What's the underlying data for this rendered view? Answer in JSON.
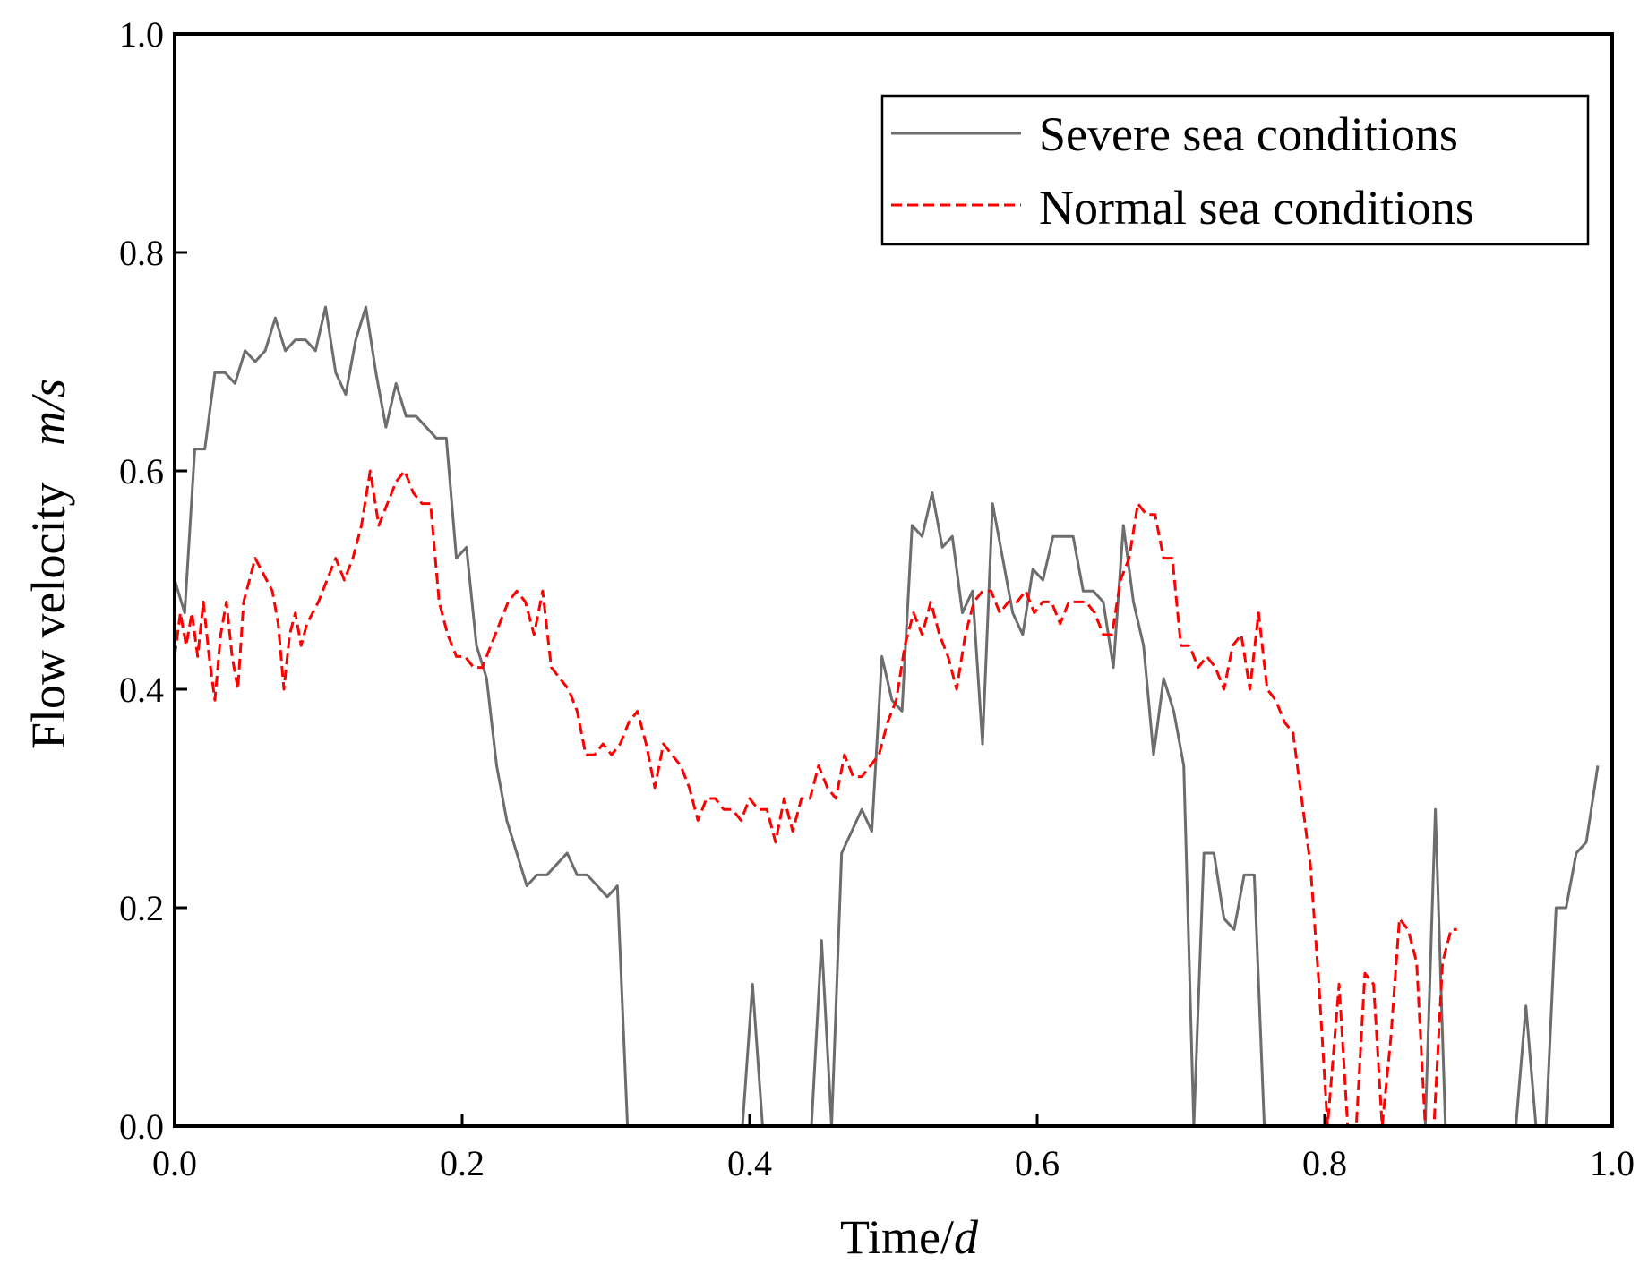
{
  "chart_data": {
    "type": "line",
    "title": "",
    "xlabel": "Time/",
    "xlabel_unit": "d",
    "ylabel": "Flow velocity   ",
    "ylabel_unit": "m/s",
    "xlim": [
      0.0,
      1.0
    ],
    "ylim": [
      0.0,
      1.0
    ],
    "x_ticks": [
      0.0,
      0.2,
      0.4,
      0.6,
      0.8,
      1.0
    ],
    "y_ticks": [
      0.0,
      0.2,
      0.4,
      0.6,
      0.8,
      1.0
    ],
    "x_tick_labels": [
      "0.0",
      "0.2",
      "0.4",
      "0.6",
      "0.8",
      "1.0"
    ],
    "y_tick_labels": [
      "0.0",
      "0.2",
      "0.4",
      "0.6",
      "0.8",
      "1.0"
    ],
    "legend_position": "top-right",
    "series": [
      {
        "name": "Severe sea conditions",
        "color": "#6d6d6d",
        "style": "solid",
        "points": [
          [
            0.0,
            0.5
          ],
          [
            0.007,
            0.47
          ],
          [
            0.014,
            0.62
          ],
          [
            0.021,
            0.62
          ],
          [
            0.028,
            0.69
          ],
          [
            0.035,
            0.69
          ],
          [
            0.042,
            0.68
          ],
          [
            0.049,
            0.71
          ],
          [
            0.056,
            0.7
          ],
          [
            0.063,
            0.71
          ],
          [
            0.07,
            0.74
          ],
          [
            0.077,
            0.71
          ],
          [
            0.084,
            0.72
          ],
          [
            0.091,
            0.72
          ],
          [
            0.098,
            0.71
          ],
          [
            0.105,
            0.75
          ],
          [
            0.112,
            0.69
          ],
          [
            0.119,
            0.67
          ],
          [
            0.126,
            0.72
          ],
          [
            0.133,
            0.75
          ],
          [
            0.14,
            0.69
          ],
          [
            0.147,
            0.64
          ],
          [
            0.154,
            0.68
          ],
          [
            0.161,
            0.65
          ],
          [
            0.168,
            0.65
          ],
          [
            0.175,
            0.64
          ],
          [
            0.182,
            0.63
          ],
          [
            0.189,
            0.63
          ],
          [
            0.196,
            0.52
          ],
          [
            0.203,
            0.53
          ],
          [
            0.21,
            0.44
          ],
          [
            0.217,
            0.41
          ],
          [
            0.224,
            0.33
          ],
          [
            0.231,
            0.28
          ],
          [
            0.238,
            0.25
          ],
          [
            0.245,
            0.22
          ],
          [
            0.252,
            0.23
          ],
          [
            0.259,
            0.23
          ],
          [
            0.266,
            0.24
          ],
          [
            0.273,
            0.25
          ],
          [
            0.28,
            0.23
          ],
          [
            0.287,
            0.23
          ],
          [
            0.294,
            0.22
          ],
          [
            0.301,
            0.21
          ],
          [
            0.308,
            0.22
          ],
          [
            0.315,
            0.0
          ],
          [
            0.322,
            0.0
          ],
          [
            0.395,
            0.0
          ],
          [
            0.402,
            0.13
          ],
          [
            0.409,
            0.0
          ],
          [
            0.443,
            0.0
          ],
          [
            0.45,
            0.17
          ],
          [
            0.457,
            0.0
          ],
          [
            0.464,
            0.25
          ],
          [
            0.471,
            0.27
          ],
          [
            0.478,
            0.29
          ],
          [
            0.485,
            0.27
          ],
          [
            0.492,
            0.43
          ],
          [
            0.499,
            0.39
          ],
          [
            0.506,
            0.38
          ],
          [
            0.513,
            0.55
          ],
          [
            0.52,
            0.54
          ],
          [
            0.527,
            0.58
          ],
          [
            0.534,
            0.53
          ],
          [
            0.541,
            0.54
          ],
          [
            0.548,
            0.47
          ],
          [
            0.555,
            0.49
          ],
          [
            0.562,
            0.35
          ],
          [
            0.569,
            0.57
          ],
          [
            0.576,
            0.52
          ],
          [
            0.583,
            0.47
          ],
          [
            0.59,
            0.45
          ],
          [
            0.597,
            0.51
          ],
          [
            0.604,
            0.5
          ],
          [
            0.611,
            0.54
          ],
          [
            0.618,
            0.54
          ],
          [
            0.625,
            0.54
          ],
          [
            0.632,
            0.49
          ],
          [
            0.639,
            0.49
          ],
          [
            0.646,
            0.48
          ],
          [
            0.653,
            0.42
          ],
          [
            0.66,
            0.55
          ],
          [
            0.667,
            0.48
          ],
          [
            0.674,
            0.44
          ],
          [
            0.681,
            0.34
          ],
          [
            0.688,
            0.41
          ],
          [
            0.695,
            0.38
          ],
          [
            0.702,
            0.33
          ],
          [
            0.709,
            0.0
          ],
          [
            0.716,
            0.25
          ],
          [
            0.723,
            0.25
          ],
          [
            0.73,
            0.19
          ],
          [
            0.737,
            0.18
          ],
          [
            0.744,
            0.23
          ],
          [
            0.751,
            0.23
          ],
          [
            0.758,
            0.0
          ],
          [
            0.87,
            0.0
          ],
          [
            0.877,
            0.29
          ],
          [
            0.884,
            0.0
          ],
          [
            0.933,
            0.0
          ],
          [
            0.94,
            0.11
          ],
          [
            0.947,
            0.0
          ],
          [
            0.954,
            0.0
          ],
          [
            0.961,
            0.2
          ],
          [
            0.968,
            0.2
          ],
          [
            0.975,
            0.25
          ],
          [
            0.982,
            0.26
          ],
          [
            0.99,
            0.33
          ]
        ]
      },
      {
        "name": "Normal sea conditions",
        "color": "#ff0000",
        "style": "dashed",
        "points": [
          [
            0.0,
            0.43
          ],
          [
            0.004,
            0.47
          ],
          [
            0.008,
            0.44
          ],
          [
            0.012,
            0.47
          ],
          [
            0.016,
            0.43
          ],
          [
            0.02,
            0.48
          ],
          [
            0.024,
            0.43
          ],
          [
            0.028,
            0.39
          ],
          [
            0.032,
            0.45
          ],
          [
            0.036,
            0.48
          ],
          [
            0.04,
            0.43
          ],
          [
            0.044,
            0.4
          ],
          [
            0.048,
            0.48
          ],
          [
            0.052,
            0.5
          ],
          [
            0.056,
            0.52
          ],
          [
            0.06,
            0.51
          ],
          [
            0.064,
            0.5
          ],
          [
            0.068,
            0.49
          ],
          [
            0.072,
            0.46
          ],
          [
            0.076,
            0.4
          ],
          [
            0.08,
            0.45
          ],
          [
            0.084,
            0.47
          ],
          [
            0.088,
            0.44
          ],
          [
            0.092,
            0.46
          ],
          [
            0.096,
            0.47
          ],
          [
            0.1,
            0.48
          ],
          [
            0.106,
            0.5
          ],
          [
            0.112,
            0.52
          ],
          [
            0.118,
            0.5
          ],
          [
            0.124,
            0.52
          ],
          [
            0.13,
            0.55
          ],
          [
            0.136,
            0.6
          ],
          [
            0.142,
            0.55
          ],
          [
            0.148,
            0.57
          ],
          [
            0.154,
            0.59
          ],
          [
            0.16,
            0.6
          ],
          [
            0.166,
            0.58
          ],
          [
            0.172,
            0.57
          ],
          [
            0.178,
            0.57
          ],
          [
            0.184,
            0.48
          ],
          [
            0.19,
            0.45
          ],
          [
            0.196,
            0.43
          ],
          [
            0.202,
            0.43
          ],
          [
            0.208,
            0.42
          ],
          [
            0.214,
            0.42
          ],
          [
            0.22,
            0.44
          ],
          [
            0.226,
            0.46
          ],
          [
            0.232,
            0.48
          ],
          [
            0.238,
            0.49
          ],
          [
            0.244,
            0.48
          ],
          [
            0.25,
            0.45
          ],
          [
            0.256,
            0.49
          ],
          [
            0.262,
            0.42
          ],
          [
            0.268,
            0.41
          ],
          [
            0.274,
            0.4
          ],
          [
            0.28,
            0.38
          ],
          [
            0.286,
            0.34
          ],
          [
            0.292,
            0.34
          ],
          [
            0.298,
            0.35
          ],
          [
            0.304,
            0.34
          ],
          [
            0.31,
            0.35
          ],
          [
            0.316,
            0.37
          ],
          [
            0.322,
            0.38
          ],
          [
            0.328,
            0.35
          ],
          [
            0.334,
            0.31
          ],
          [
            0.34,
            0.35
          ],
          [
            0.346,
            0.34
          ],
          [
            0.352,
            0.33
          ],
          [
            0.358,
            0.31
          ],
          [
            0.364,
            0.28
          ],
          [
            0.37,
            0.3
          ],
          [
            0.376,
            0.3
          ],
          [
            0.382,
            0.29
          ],
          [
            0.388,
            0.29
          ],
          [
            0.394,
            0.28
          ],
          [
            0.4,
            0.3
          ],
          [
            0.406,
            0.29
          ],
          [
            0.412,
            0.29
          ],
          [
            0.418,
            0.26
          ],
          [
            0.424,
            0.3
          ],
          [
            0.43,
            0.27
          ],
          [
            0.436,
            0.3
          ],
          [
            0.442,
            0.3
          ],
          [
            0.448,
            0.33
          ],
          [
            0.454,
            0.31
          ],
          [
            0.46,
            0.3
          ],
          [
            0.466,
            0.34
          ],
          [
            0.472,
            0.32
          ],
          [
            0.478,
            0.32
          ],
          [
            0.484,
            0.33
          ],
          [
            0.49,
            0.34
          ],
          [
            0.496,
            0.37
          ],
          [
            0.502,
            0.39
          ],
          [
            0.508,
            0.44
          ],
          [
            0.514,
            0.47
          ],
          [
            0.52,
            0.45
          ],
          [
            0.526,
            0.48
          ],
          [
            0.532,
            0.45
          ],
          [
            0.538,
            0.43
          ],
          [
            0.544,
            0.4
          ],
          [
            0.55,
            0.45
          ],
          [
            0.556,
            0.48
          ],
          [
            0.562,
            0.49
          ],
          [
            0.568,
            0.49
          ],
          [
            0.574,
            0.47
          ],
          [
            0.58,
            0.48
          ],
          [
            0.586,
            0.48
          ],
          [
            0.592,
            0.49
          ],
          [
            0.598,
            0.47
          ],
          [
            0.604,
            0.48
          ],
          [
            0.61,
            0.48
          ],
          [
            0.616,
            0.46
          ],
          [
            0.622,
            0.48
          ],
          [
            0.628,
            0.48
          ],
          [
            0.634,
            0.48
          ],
          [
            0.64,
            0.47
          ],
          [
            0.646,
            0.45
          ],
          [
            0.652,
            0.45
          ],
          [
            0.658,
            0.5
          ],
          [
            0.664,
            0.52
          ],
          [
            0.67,
            0.57
          ],
          [
            0.676,
            0.56
          ],
          [
            0.682,
            0.56
          ],
          [
            0.688,
            0.52
          ],
          [
            0.694,
            0.52
          ],
          [
            0.7,
            0.44
          ],
          [
            0.706,
            0.44
          ],
          [
            0.712,
            0.42
          ],
          [
            0.718,
            0.43
          ],
          [
            0.724,
            0.42
          ],
          [
            0.73,
            0.4
          ],
          [
            0.736,
            0.44
          ],
          [
            0.742,
            0.45
          ],
          [
            0.748,
            0.4
          ],
          [
            0.754,
            0.47
          ],
          [
            0.76,
            0.4
          ],
          [
            0.766,
            0.39
          ],
          [
            0.772,
            0.37
          ],
          [
            0.778,
            0.36
          ],
          [
            0.784,
            0.3
          ],
          [
            0.79,
            0.24
          ],
          [
            0.796,
            0.13
          ],
          [
            0.802,
            0.0
          ],
          [
            0.81,
            0.13
          ],
          [
            0.816,
            0.0
          ],
          [
            0.822,
            0.0
          ],
          [
            0.828,
            0.14
          ],
          [
            0.834,
            0.13
          ],
          [
            0.84,
            0.0
          ],
          [
            0.846,
            0.08
          ],
          [
            0.852,
            0.19
          ],
          [
            0.858,
            0.18
          ],
          [
            0.864,
            0.15
          ],
          [
            0.87,
            0.0
          ],
          [
            0.876,
            0.0
          ],
          [
            0.882,
            0.15
          ],
          [
            0.888,
            0.18
          ],
          [
            0.892,
            0.18
          ]
        ]
      }
    ]
  }
}
